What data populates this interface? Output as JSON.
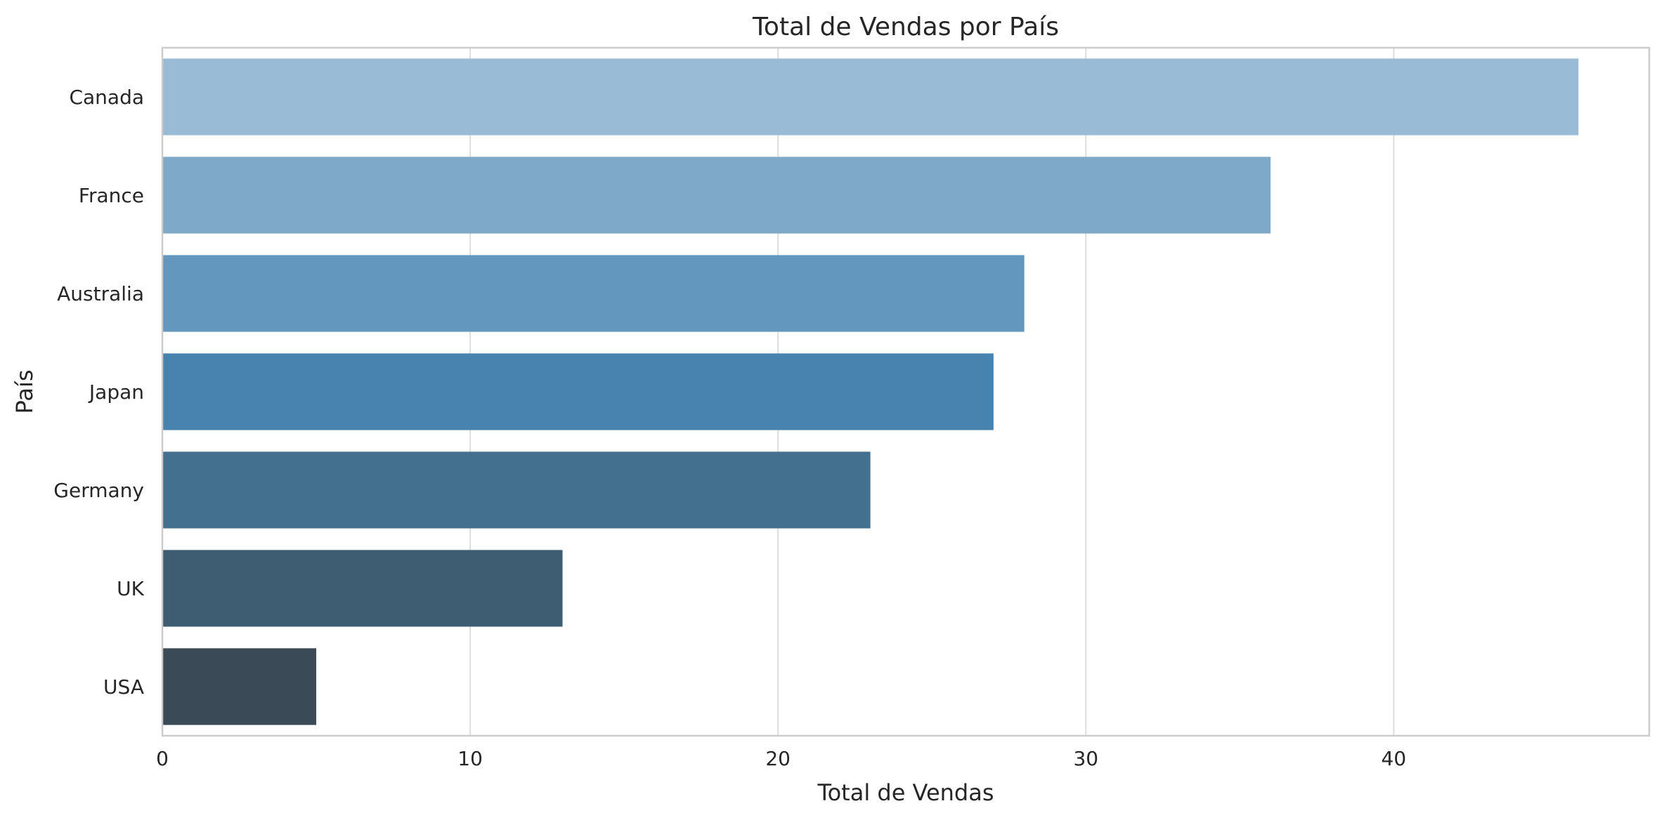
{
  "chart_data": {
    "type": "bar",
    "orientation": "horizontal",
    "title": "Total de Vendas por País",
    "xlabel": "Total de Vendas",
    "ylabel": "País",
    "categories": [
      "Canada",
      "France",
      "Australia",
      "Japan",
      "Germany",
      "UK",
      "USA"
    ],
    "values": [
      46,
      36,
      28,
      27,
      23,
      13,
      5
    ],
    "colors": [
      "#9abbd5",
      "#7fa9c9",
      "#6397bd",
      "#4883b0",
      "#44708f",
      "#3e5c72",
      "#3a4a56"
    ],
    "xlim": [
      0,
      48.3
    ],
    "xticks": [
      0,
      10,
      20,
      30,
      40
    ],
    "grid": "vertical",
    "legend": "none"
  }
}
